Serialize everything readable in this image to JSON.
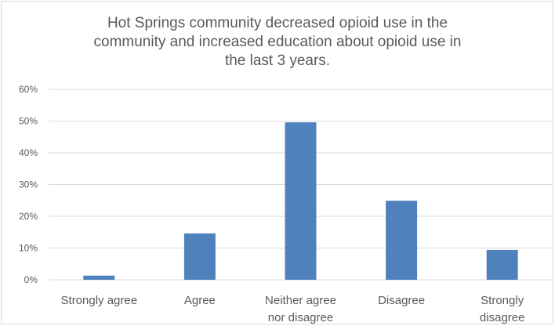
{
  "chart_data": {
    "type": "bar",
    "title_lines": [
      "Hot Springs community decreased opioid use in the",
      "community and increased education about opioid use in",
      "the last 3 years."
    ],
    "categories": [
      [
        "Strongly agree"
      ],
      [
        "Agree"
      ],
      [
        "Neither agree",
        "nor disagree"
      ],
      [
        "Disagree"
      ],
      [
        "Strongly",
        "disagree"
      ]
    ],
    "values": [
      1.3,
      14.6,
      49.6,
      24.9,
      9.4
    ],
    "y_ticks": [
      "0%",
      "10%",
      "20%",
      "30%",
      "40%",
      "50%",
      "60%"
    ],
    "ylim": [
      0,
      60
    ],
    "grid": true,
    "bar_color": "#4f81bd",
    "grid_color": "#d9d9d9",
    "text_color": "#595959"
  }
}
